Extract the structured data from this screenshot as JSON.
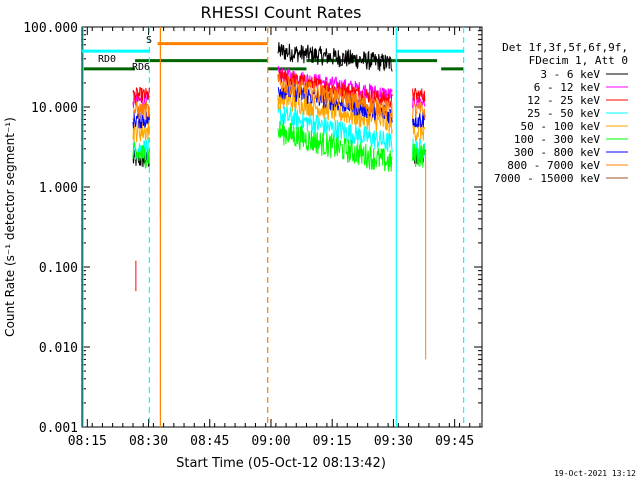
{
  "chart_data": {
    "type": "line",
    "title": "RHESSI Count Rates",
    "xlabel": "Start Time (05-Oct-12 08:13:42)",
    "ylabel": "Count Rate (s⁻¹ detector segment⁻¹)",
    "xlim_minutes": [
      0,
      98
    ],
    "ylim": [
      0.001,
      100
    ],
    "yscale": "log",
    "x_ticks": [
      "08:15",
      "08:30",
      "08:45",
      "09:00",
      "09:15",
      "09:30",
      "09:45"
    ],
    "x_tick_minutes": [
      1.3,
      16.3,
      31.3,
      46.3,
      61.3,
      76.3,
      91.3
    ],
    "y_ticks": [
      "0.001",
      "0.010",
      "0.100",
      "1.000",
      "10.000",
      "100.000"
    ],
    "y_tick_values": [
      0.001,
      0.01,
      0.1,
      1,
      10,
      100
    ],
    "legend_header": [
      "Det 1f,3f,5f,6f,9f,",
      "FDecim 1, Att 0"
    ],
    "legend_position": "right",
    "timestamp": "19-Oct-2021 13:12",
    "series": [
      {
        "name": "3 - 6 keV",
        "color": "#000000",
        "segments": [
          {
            "t": [
              12.5,
              16.5
            ],
            "y": 2.2
          },
          {
            "t": [
              48,
              76
            ],
            "y": [
              50,
              35
            ]
          },
          {
            "t": [
              81,
              84
            ],
            "y": 2.5
          }
        ]
      },
      {
        "name": "6 - 12 keV",
        "color": "#ff00ff",
        "segments": [
          {
            "t": [
              12.5,
              16.5
            ],
            "y": 12
          },
          {
            "t": [
              48,
              76
            ],
            "y": [
              26,
              14
            ]
          },
          {
            "t": [
              81,
              84
            ],
            "y": 12
          }
        ]
      },
      {
        "name": "12 - 25 keV",
        "color": "#ff0000",
        "segments": [
          {
            "t": [
              12.5,
              16.5
            ],
            "y": 14
          },
          {
            "t": [
              48,
              76
            ],
            "y": [
              24,
              12
            ]
          },
          {
            "t": [
              81,
              84
            ],
            "y": 14
          }
        ]
      },
      {
        "name": "25 - 50 keV",
        "color": "#00ffff",
        "segments": [
          {
            "t": [
              12.5,
              16.5
            ],
            "y": 3
          },
          {
            "t": [
              48,
              76
            ],
            "y": [
              8,
              3.5
            ]
          },
          {
            "t": [
              81,
              84
            ],
            "y": 3
          }
        ]
      },
      {
        "name": "50 - 100 keV",
        "color": "#ffa500",
        "segments": [
          {
            "t": [
              12.5,
              16.5
            ],
            "y": 5
          },
          {
            "t": [
              48,
              76
            ],
            "y": [
              13,
              6
            ]
          },
          {
            "t": [
              81,
              84
            ],
            "y": 5
          }
        ]
      },
      {
        "name": "100 - 300 keV",
        "color": "#00ff00",
        "segments": [
          {
            "t": [
              12.5,
              16.5
            ],
            "y": 2.5
          },
          {
            "t": [
              48,
              76
            ],
            "y": [
              5,
              2
            ]
          },
          {
            "t": [
              81,
              84
            ],
            "y": 2.5
          }
        ]
      },
      {
        "name": "300 - 800 keV",
        "color": "#0000ff",
        "segments": [
          {
            "t": [
              12.5,
              16.5
            ],
            "y": 7
          },
          {
            "t": [
              48,
              76
            ],
            "y": [
              17,
              8
            ]
          },
          {
            "t": [
              81,
              84
            ],
            "y": 7
          }
        ]
      },
      {
        "name": "800 - 7000 keV",
        "color": "#ff8000",
        "segments": [
          {
            "t": [
              12.5,
              16.5
            ],
            "y": 9
          },
          {
            "t": [
              48,
              76
            ],
            "y": [
              20,
              9
            ]
          },
          {
            "t": [
              81,
              84
            ],
            "y": 9
          }
        ]
      },
      {
        "name": "7000 - 15000 keV",
        "color": "#a0522d",
        "segments": []
      }
    ],
    "annotations": [
      {
        "text": "RD0",
        "color": "#006400"
      },
      {
        "text": "RD6",
        "color": "#006400"
      },
      {
        "text": "S",
        "color": "#ff8000"
      }
    ],
    "state_bars": [
      {
        "color": "#00ffff",
        "t": [
          0,
          16.5
        ],
        "y": 50
      },
      {
        "color": "#00ffff",
        "t": [
          77,
          93.5
        ],
        "y": 50
      },
      {
        "color": "#ff8000",
        "t": [
          18.5,
          45.5
        ],
        "y": 62
      },
      {
        "color": "#006400",
        "t": [
          0,
          13
        ],
        "y": 30
      },
      {
        "color": "#006400",
        "t": [
          13,
          45.5
        ],
        "y": 38
      },
      {
        "color": "#006400",
        "t": [
          45.5,
          48
        ],
        "y": 30
      },
      {
        "color": "#006400",
        "t": [
          48,
          55
        ],
        "y": 30
      },
      {
        "color": "#006400",
        "t": [
          55,
          87
        ],
        "y": 38
      },
      {
        "color": "#006400",
        "t": [
          88,
          93.5
        ],
        "y": 30
      }
    ],
    "vlines": [
      {
        "t": 0.3,
        "color": "#00ffff",
        "dash": false
      },
      {
        "t": 16.5,
        "color": "#00ffff",
        "dash": true
      },
      {
        "t": 19.2,
        "color": "#ff8000",
        "dash": false
      },
      {
        "t": 45.5,
        "color": "#ff8000",
        "dash": true
      },
      {
        "t": 77,
        "color": "#00ffff",
        "dash": false
      },
      {
        "t": 93.5,
        "color": "#00ffff",
        "dash": true
      }
    ]
  }
}
